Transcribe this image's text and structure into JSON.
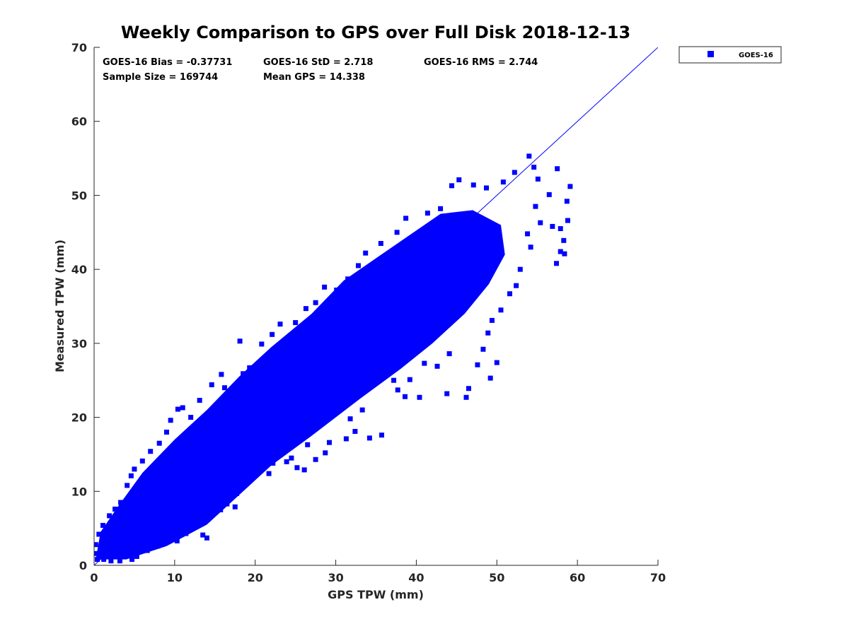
{
  "chart_data": {
    "type": "scatter",
    "title": "Weekly Comparison to GPS over Full Disk 2018-12-13",
    "xlabel": "GPS TPW (mm)",
    "ylabel": "Measured TPW (mm)",
    "xlim": [
      0,
      70
    ],
    "ylim": [
      0,
      70
    ],
    "xticks": [
      "0",
      "10",
      "20",
      "30",
      "40",
      "50",
      "60",
      "70"
    ],
    "yticks": [
      "0",
      "10",
      "20",
      "30",
      "40",
      "50",
      "60",
      "70"
    ],
    "grid": false,
    "legend": {
      "position": "top-right-outside",
      "entries": [
        "GOES-16"
      ]
    },
    "stats": {
      "bias": "GOES-16 Bias = -0.37731",
      "std": "GOES-16 StD = 2.718",
      "rms": "GOES-16 RMS = 2.744",
      "sample_size": "Sample Size = 169744",
      "mean_gps": "Mean GPS = 14.338"
    },
    "reference_line": {
      "from": [
        0,
        0
      ],
      "to": [
        70,
        70
      ]
    },
    "series": [
      {
        "name": "GOES-16",
        "color": "#0000ff",
        "marker": "square",
        "points": [
          [
            54.0,
            55.3
          ],
          [
            54.6,
            53.8
          ],
          [
            57.5,
            53.6
          ],
          [
            59.1,
            51.2
          ],
          [
            58.7,
            49.2
          ],
          [
            58.8,
            46.6
          ],
          [
            57.9,
            45.5
          ],
          [
            56.9,
            45.8
          ],
          [
            58.3,
            43.9
          ],
          [
            57.9,
            42.4
          ],
          [
            58.4,
            42.1
          ],
          [
            57.4,
            40.8
          ],
          [
            52.9,
            40.0
          ],
          [
            52.4,
            37.8
          ],
          [
            51.6,
            36.7
          ],
          [
            50.5,
            34.5
          ],
          [
            49.4,
            33.1
          ],
          [
            48.9,
            31.4
          ],
          [
            48.3,
            29.2
          ],
          [
            50.0,
            27.4
          ],
          [
            47.6,
            27.1
          ],
          [
            49.2,
            25.3
          ],
          [
            46.5,
            23.9
          ],
          [
            46.2,
            22.7
          ],
          [
            43.8,
            23.2
          ],
          [
            40.4,
            22.7
          ],
          [
            38.6,
            22.8
          ],
          [
            37.7,
            23.7
          ],
          [
            37.2,
            25.0
          ],
          [
            39.2,
            25.1
          ],
          [
            35.7,
            17.6
          ],
          [
            34.2,
            17.2
          ],
          [
            31.3,
            17.1
          ],
          [
            32.4,
            18.1
          ],
          [
            28.7,
            15.2
          ],
          [
            29.2,
            16.6
          ],
          [
            26.5,
            16.3
          ],
          [
            24.5,
            14.5
          ],
          [
            25.2,
            13.2
          ],
          [
            26.1,
            12.9
          ],
          [
            27.5,
            14.3
          ],
          [
            23.9,
            14.0
          ],
          [
            20.4,
            15.0
          ],
          [
            21.1,
            16.1
          ],
          [
            19.3,
            11.4
          ],
          [
            18.7,
            10.8
          ],
          [
            17.8,
            11.8
          ],
          [
            20.4,
            12.9
          ],
          [
            21.7,
            12.4
          ],
          [
            22.2,
            13.8
          ],
          [
            17.7,
            9.7
          ],
          [
            16.8,
            9.1
          ],
          [
            16.5,
            8.3
          ],
          [
            17.5,
            7.9
          ],
          [
            15.7,
            7.5
          ],
          [
            14.0,
            6.9
          ],
          [
            12.4,
            5.4
          ],
          [
            13.5,
            4.1
          ],
          [
            14.0,
            3.7
          ],
          [
            11.4,
            4.3
          ],
          [
            10.3,
            3.3
          ],
          [
            9.8,
            4.2
          ],
          [
            9.4,
            5.1
          ],
          [
            8.4,
            3.4
          ],
          [
            7.9,
            2.6
          ],
          [
            6.6,
            2.0
          ],
          [
            5.3,
            1.2
          ],
          [
            4.7,
            0.8
          ],
          [
            3.2,
            0.6
          ],
          [
            2.1,
            0.6
          ],
          [
            1.2,
            0.8
          ],
          [
            0.4,
            0.8
          ],
          [
            0.1,
            1.6
          ],
          [
            0.2,
            2.8
          ],
          [
            0.6,
            4.2
          ],
          [
            1.1,
            5.4
          ],
          [
            1.9,
            6.7
          ],
          [
            2.6,
            7.6
          ],
          [
            3.3,
            8.5
          ],
          [
            4.1,
            10.8
          ],
          [
            4.6,
            12.1
          ],
          [
            5.0,
            13.0
          ],
          [
            6.0,
            14.1
          ],
          [
            7.0,
            15.4
          ],
          [
            8.1,
            16.5
          ],
          [
            9.0,
            18.0
          ],
          [
            9.5,
            19.6
          ],
          [
            10.4,
            21.1
          ],
          [
            11.0,
            21.3
          ],
          [
            12.0,
            20.0
          ],
          [
            13.1,
            22.3
          ],
          [
            14.6,
            24.4
          ],
          [
            16.2,
            24.0
          ],
          [
            15.8,
            25.8
          ],
          [
            18.5,
            25.9
          ],
          [
            19.3,
            26.7
          ],
          [
            18.1,
            30.3
          ],
          [
            20.8,
            29.9
          ],
          [
            22.1,
            31.2
          ],
          [
            23.1,
            32.6
          ],
          [
            25.0,
            32.8
          ],
          [
            26.3,
            34.7
          ],
          [
            27.5,
            35.5
          ],
          [
            28.6,
            37.6
          ],
          [
            30.1,
            37.2
          ],
          [
            31.5,
            38.7
          ],
          [
            32.8,
            40.5
          ],
          [
            33.7,
            42.2
          ],
          [
            35.6,
            43.5
          ],
          [
            37.6,
            45.0
          ],
          [
            38.7,
            46.9
          ],
          [
            41.4,
            47.6
          ],
          [
            43.0,
            48.2
          ],
          [
            44.4,
            51.3
          ],
          [
            45.3,
            52.1
          ],
          [
            47.1,
            51.4
          ],
          [
            48.7,
            51.0
          ],
          [
            50.8,
            51.8
          ],
          [
            52.2,
            53.1
          ],
          [
            55.1,
            52.2
          ],
          [
            56.5,
            50.1
          ],
          [
            54.8,
            48.5
          ],
          [
            55.4,
            46.3
          ],
          [
            53.8,
            44.8
          ],
          [
            54.2,
            43.0
          ],
          [
            30.3,
            27.6
          ],
          [
            33.6,
            30.1
          ],
          [
            36.8,
            34.2
          ],
          [
            29.7,
            24.8
          ],
          [
            26.4,
            21.4
          ],
          [
            40.6,
            31.1
          ],
          [
            43.8,
            34.9
          ],
          [
            45.7,
            37.3
          ],
          [
            44.1,
            28.6
          ],
          [
            42.6,
            26.9
          ],
          [
            41.0,
            27.3
          ],
          [
            36.2,
            26.0
          ],
          [
            33.3,
            21.0
          ],
          [
            31.8,
            19.8
          ],
          [
            30.1,
            22.5
          ],
          [
            28.2,
            19.6
          ],
          [
            25.6,
            18.5
          ],
          [
            22.8,
            17.0
          ],
          [
            19.9,
            17.3
          ],
          [
            23.0,
            20.9
          ],
          [
            20.6,
            22.9
          ],
          [
            17.2,
            20.4
          ],
          [
            14.9,
            17.9
          ],
          [
            12.7,
            15.5
          ],
          [
            11.0,
            14.2
          ],
          [
            8.0,
            11.8
          ],
          [
            6.1,
            9.1
          ],
          [
            5.7,
            6.2
          ],
          [
            3.8,
            3.2
          ],
          [
            2.4,
            2.1
          ]
        ]
      }
    ]
  }
}
